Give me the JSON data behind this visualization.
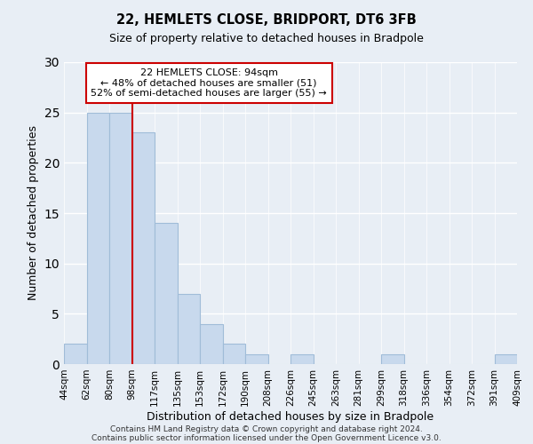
{
  "title1": "22, HEMLETS CLOSE, BRIDPORT, DT6 3FB",
  "title2": "Size of property relative to detached houses in Bradpole",
  "xlabel": "Distribution of detached houses by size in Bradpole",
  "ylabel": "Number of detached properties",
  "bin_labels": [
    "44sqm",
    "62sqm",
    "80sqm",
    "98sqm",
    "117sqm",
    "135sqm",
    "153sqm",
    "172sqm",
    "190sqm",
    "208sqm",
    "226sqm",
    "245sqm",
    "263sqm",
    "281sqm",
    "299sqm",
    "318sqm",
    "336sqm",
    "354sqm",
    "372sqm",
    "391sqm",
    "409sqm"
  ],
  "bar_heights": [
    2,
    25,
    25,
    23,
    14,
    7,
    4,
    2,
    1,
    0,
    1,
    0,
    0,
    0,
    1,
    0,
    0,
    0,
    0,
    1
  ],
  "bar_color": "#c8d9ed",
  "bar_edge_color": "#a0bcd8",
  "property_line_x": 3.0,
  "annotation_line1": "22 HEMLETS CLOSE: 94sqm",
  "annotation_line2": "← 48% of detached houses are smaller (51)",
  "annotation_line3": "52% of semi-detached houses are larger (55) →",
  "annotation_box_color": "#ffffff",
  "annotation_box_edge": "#cc0000",
  "red_line_color": "#cc0000",
  "ylim": [
    0,
    30
  ],
  "background_color": "#e8eef5",
  "footer1": "Contains HM Land Registry data © Crown copyright and database right 2024.",
  "footer2": "Contains public sector information licensed under the Open Government Licence v3.0."
}
